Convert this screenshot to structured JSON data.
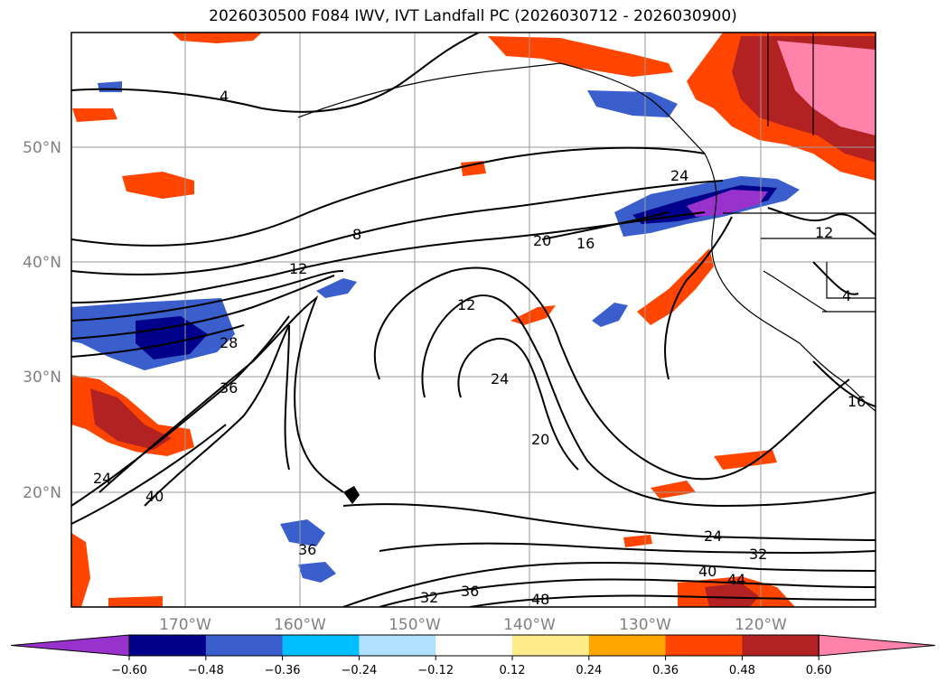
{
  "title": "2026030500 F084 IWV, IVT Landfall PC (2026030712 - 2026030900)",
  "lat_labels": [
    "50°N",
    "40°N",
    "30°N",
    "20°N"
  ],
  "lon_labels": [
    "170°W",
    "160°W",
    "150°W",
    "140°W",
    "130°W",
    "120°W"
  ],
  "contour_labels": [
    "4",
    "8",
    "12",
    "20",
    "16",
    "24",
    "12",
    "24",
    "28",
    "36",
    "24",
    "40",
    "20",
    "36",
    "32",
    "36",
    "48",
    "24",
    "32",
    "40",
    "44",
    "12",
    "4",
    "16"
  ],
  "colorbar": {
    "ticks": [
      "-0.60",
      "-0.48",
      "-0.36",
      "-0.24",
      "-0.12",
      "0.12",
      "0.24",
      "0.36",
      "0.48",
      "0.60"
    ],
    "colors": [
      "#9932cc",
      "#00008b",
      "#3a5fcd",
      "#00bfff",
      "#b0e2ff",
      "#ffffff",
      "#ffec8b",
      "#ffa500",
      "#ff4500",
      "#b22222",
      "#ff82ab"
    ]
  }
}
